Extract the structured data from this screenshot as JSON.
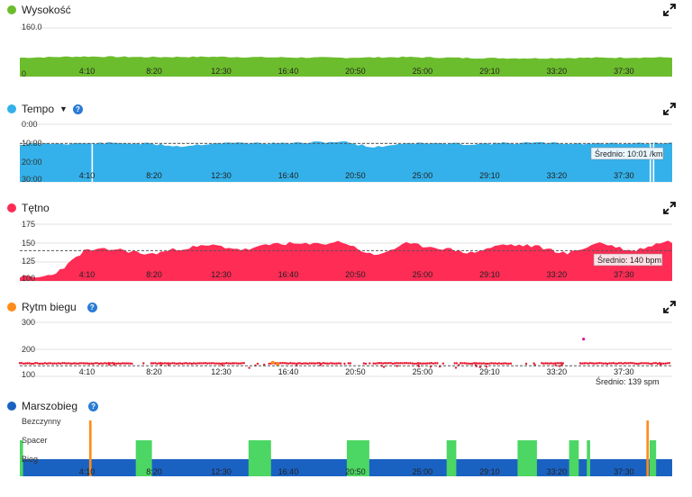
{
  "panels": {
    "altitude": {
      "title": "Wysokość",
      "color": "#6cbd2d"
    },
    "pace": {
      "title": "Tempo",
      "color": "#34b1ea",
      "avg_label": "Średnio: 10:01 /km",
      "avg": 10.0
    },
    "hr": {
      "title": "Tętno",
      "color": "#ff2c55",
      "avg_label": "Średnio: 140 bpm",
      "avg": 140
    },
    "cadence": {
      "title": "Rytm biegu",
      "color": "#ff8c1a",
      "avg_label": "Średnio: 139 spm",
      "avg": 139
    },
    "gait": {
      "title": "Marszobieg",
      "color": "#1a62c2"
    }
  },
  "icons": {
    "expand": "expand-arrows-icon",
    "help": "help-circle-icon",
    "dropdown": "caret-down-icon"
  },
  "chart_data": [
    {
      "type": "area",
      "name": "altitude",
      "ylim": [
        0,
        160
      ],
      "y_ticks": [
        "160.0",
        "0"
      ],
      "x_ticks": [
        "4:10",
        "8:20",
        "12:30",
        "16:40",
        "20:50",
        "25:00",
        "29:10",
        "33:20",
        "37:30"
      ],
      "x_minutes": [
        0,
        4,
        8,
        12,
        16,
        20,
        24,
        28,
        32,
        36,
        40
      ],
      "values": [
        62,
        66,
        64,
        65,
        63,
        62,
        64,
        61,
        60,
        62,
        63
      ]
    },
    {
      "type": "area",
      "name": "pace",
      "ylim": [
        0,
        30
      ],
      "y_ticks": [
        "0:00",
        "10:00",
        "20:00",
        "30:00"
      ],
      "x_ticks": [
        "4:10",
        "8:20",
        "12:30",
        "16:40",
        "20:50",
        "25:00",
        "29:10",
        "33:20",
        "37:30"
      ],
      "x_minutes": [
        0,
        2,
        4,
        6,
        8,
        10,
        12,
        14,
        16,
        18,
        20,
        22,
        24,
        26,
        28,
        30,
        32,
        34,
        36,
        38,
        40
      ],
      "values": [
        10.5,
        10.1,
        10.0,
        9.8,
        10.2,
        11.5,
        9.9,
        9.7,
        10.0,
        9.6,
        9.0,
        12.0,
        9.8,
        10.1,
        10.3,
        9.9,
        9.7,
        10.0,
        10.1,
        9.8,
        10.0
      ]
    },
    {
      "type": "area",
      "name": "hr",
      "ylim": [
        100,
        175
      ],
      "y_ticks": [
        "175",
        "150",
        "125",
        "100"
      ],
      "x_ticks": [
        "4:10",
        "8:20",
        "12:30",
        "16:40",
        "20:50",
        "25:00",
        "29:10",
        "33:20",
        "37:30"
      ],
      "x_minutes": [
        0,
        1,
        2,
        3,
        4,
        6,
        8,
        10,
        12,
        14,
        16,
        18,
        20,
        22,
        24,
        26,
        28,
        30,
        32,
        34,
        36,
        38,
        40
      ],
      "values": [
        106,
        104,
        108,
        122,
        140,
        142,
        135,
        143,
        147,
        141,
        150,
        148,
        152,
        133,
        149,
        144,
        137,
        148,
        146,
        136,
        151,
        139,
        152
      ]
    },
    {
      "type": "scatter",
      "name": "cadence",
      "ylim": [
        100,
        300
      ],
      "y_ticks": [
        "300",
        "200",
        "100"
      ],
      "x_ticks": [
        "4:10",
        "8:20",
        "12:30",
        "16:40",
        "20:50",
        "25:00",
        "29:10",
        "33:20",
        "37:30"
      ],
      "typical": 148,
      "outliers": [
        [
          35,
          238
        ],
        [
          15.7,
          151
        ],
        [
          16.0,
          145
        ]
      ]
    },
    {
      "type": "bar",
      "name": "gait",
      "categories": [
        "Bieg",
        "Spacer",
        "Bezczynny"
      ],
      "colors": {
        "Bieg": "#1a62c2",
        "Spacer": "#4cd663",
        "Bezczynny": "#ff8c1a"
      },
      "x_ticks": [
        "4:10",
        "8:20",
        "12:30",
        "16:40",
        "20:50",
        "25:00",
        "29:10",
        "33:20",
        "37:30"
      ],
      "segments": [
        {
          "state": "Spacer",
          "start": 0.0,
          "end": 0.2
        },
        {
          "state": "Bezczynny",
          "start": 4.3,
          "end": 4.45
        },
        {
          "state": "Spacer",
          "start": 7.2,
          "end": 8.2
        },
        {
          "state": "Spacer",
          "start": 14.2,
          "end": 15.6
        },
        {
          "state": "Spacer",
          "start": 20.3,
          "end": 21.7
        },
        {
          "state": "Spacer",
          "start": 26.5,
          "end": 27.1
        },
        {
          "state": "Spacer",
          "start": 30.9,
          "end": 32.1
        },
        {
          "state": "Spacer",
          "start": 34.1,
          "end": 34.7
        },
        {
          "state": "Spacer",
          "start": 35.2,
          "end": 35.4
        },
        {
          "state": "Bezczynny",
          "start": 38.9,
          "end": 39.05
        },
        {
          "state": "Spacer",
          "start": 39.1,
          "end": 39.5
        }
      ]
    }
  ]
}
